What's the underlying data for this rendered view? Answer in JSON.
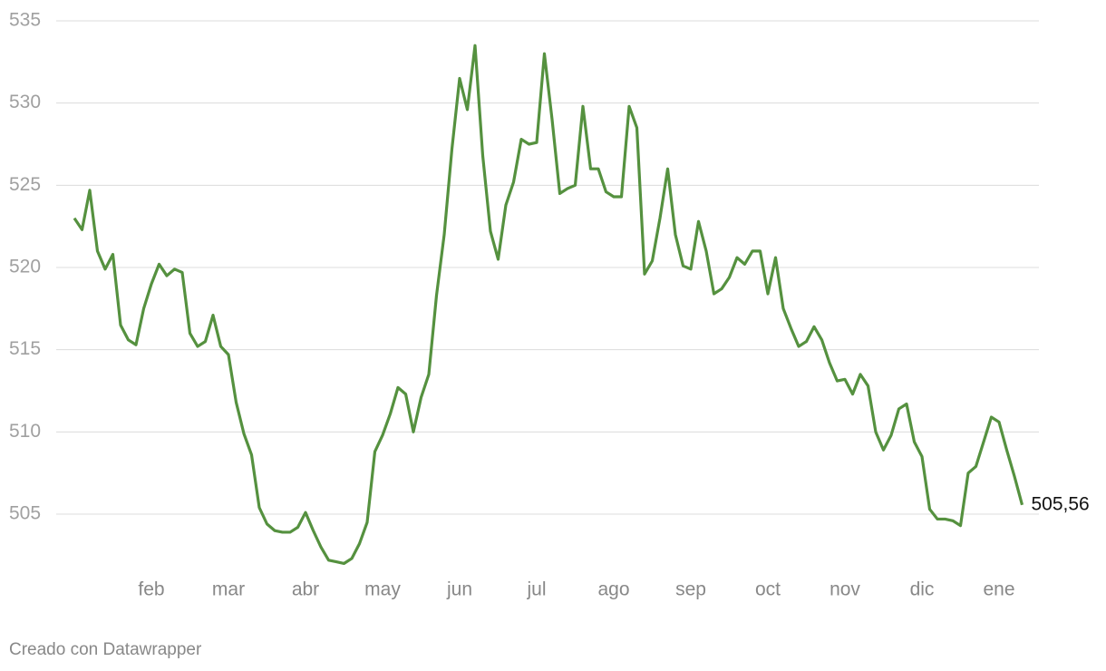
{
  "chart_data": {
    "type": "line",
    "categories": [
      null,
      null,
      null,
      null,
      null,
      null,
      null,
      null,
      null,
      null,
      "feb",
      null,
      null,
      null,
      null,
      null,
      null,
      null,
      null,
      null,
      "mar",
      null,
      null,
      null,
      null,
      null,
      null,
      null,
      null,
      null,
      "abr",
      null,
      null,
      null,
      null,
      null,
      null,
      null,
      null,
      null,
      "may",
      null,
      null,
      null,
      null,
      null,
      null,
      null,
      null,
      null,
      "jun",
      null,
      null,
      null,
      null,
      null,
      null,
      null,
      null,
      null,
      "jul",
      null,
      null,
      null,
      null,
      null,
      null,
      null,
      null,
      null,
      "ago",
      null,
      null,
      null,
      null,
      null,
      null,
      null,
      null,
      null,
      "sep",
      null,
      null,
      null,
      null,
      null,
      null,
      null,
      null,
      null,
      "oct",
      null,
      null,
      null,
      null,
      null,
      null,
      null,
      null,
      null,
      "nov",
      null,
      null,
      null,
      null,
      null,
      null,
      null,
      null,
      null,
      "dic",
      null,
      null,
      null,
      null,
      null,
      null,
      null,
      null,
      null,
      "ene",
      null,
      null,
      null
    ],
    "series": [
      {
        "color": "#55913f",
        "values": [
          523.0,
          522.3,
          524.7,
          521.0,
          519.9,
          520.8,
          516.5,
          515.6,
          515.3,
          517.5,
          519.0,
          520.2,
          519.5,
          519.9,
          519.7,
          516.0,
          515.2,
          515.5,
          517.1,
          515.2,
          514.7,
          511.8,
          509.9,
          508.6,
          505.4,
          504.4,
          504.0,
          503.9,
          503.9,
          504.2,
          505.1,
          504.0,
          503.0,
          502.2,
          502.1,
          502.0,
          502.3,
          503.2,
          504.5,
          508.8,
          509.8,
          511.1,
          512.7,
          512.3,
          510.0,
          512.1,
          513.5,
          518.3,
          522.0,
          527.2,
          531.5,
          529.6,
          533.5,
          526.8,
          522.2,
          520.5,
          523.8,
          525.2,
          527.8,
          527.5,
          527.6,
          533.0,
          529.0,
          524.5,
          524.8,
          525.0,
          529.8,
          526.0,
          526.0,
          524.6,
          524.3,
          524.3,
          529.8,
          528.5,
          519.6,
          520.4,
          523.0,
          526.0,
          522.0,
          520.1,
          519.9,
          522.8,
          521.0,
          518.4,
          518.7,
          519.4,
          520.6,
          520.2,
          521.0,
          521.0,
          518.4,
          520.6,
          517.5,
          516.3,
          515.2,
          515.5,
          516.4,
          515.6,
          514.2,
          513.1,
          513.2,
          512.3,
          513.5,
          512.8,
          510.0,
          508.9,
          509.8,
          511.4,
          511.7,
          509.4,
          508.5,
          505.3,
          504.7,
          504.7,
          504.6,
          504.3,
          507.5,
          507.9,
          509.4,
          510.9,
          510.6,
          508.9,
          507.3,
          505.56
        ],
        "value_labels": [
          null,
          null,
          null,
          null,
          null,
          null,
          null,
          null,
          null,
          null,
          null,
          null,
          null,
          null,
          null,
          null,
          null,
          null,
          null,
          null,
          null,
          null,
          null,
          null,
          null,
          null,
          null,
          null,
          null,
          null,
          null,
          null,
          null,
          null,
          null,
          null,
          null,
          null,
          null,
          null,
          null,
          null,
          null,
          null,
          null,
          null,
          null,
          null,
          null,
          null,
          null,
          null,
          null,
          null,
          null,
          null,
          null,
          null,
          null,
          null,
          null,
          null,
          null,
          null,
          null,
          null,
          null,
          null,
          null,
          null,
          null,
          null,
          null,
          null,
          null,
          null,
          null,
          null,
          null,
          null,
          null,
          null,
          null,
          null,
          null,
          null,
          null,
          null,
          null,
          null,
          null,
          null,
          null,
          null,
          null,
          null,
          null,
          null,
          null,
          null,
          null,
          null,
          null,
          null,
          null,
          null,
          null,
          null,
          null,
          null,
          null,
          null,
          null,
          null,
          null,
          null,
          null,
          null,
          null,
          null,
          null,
          null,
          null,
          "505,56"
        ]
      }
    ],
    "ylim": [
      500,
      535
    ],
    "yticks": [
      505,
      510,
      515,
      520,
      525,
      530,
      535
    ],
    "grid": true,
    "footer": "Creado con Datawrapper"
  }
}
